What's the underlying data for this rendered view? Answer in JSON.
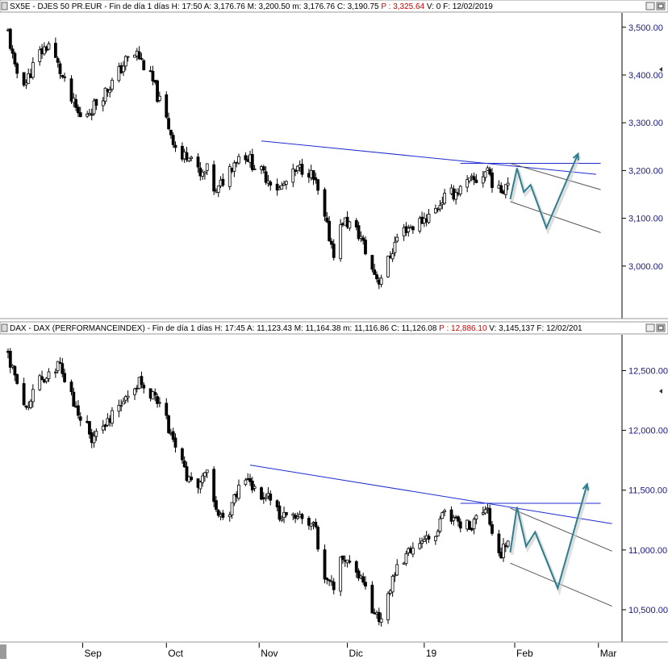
{
  "chart_data": [
    {
      "type": "candlestick",
      "header": {
        "symbol": "SX5E - DJES 50 PR.EUR",
        "period": "Fin de día 1 días",
        "hour_label": "H:",
        "hour": "17:50",
        "open_label": "A:",
        "open": "3,176.76",
        "high_label": "M:",
        "high": "3,200.50",
        "low_label": "m:",
        "low": "3,176.76",
        "close_label": "C:",
        "close": "3,190.75",
        "p_label": "P :",
        "p": "3,325.64",
        "vol_label": "V:",
        "vol": "0",
        "date_label": "F:",
        "date": "12/02/2019"
      },
      "yticks": [
        3000,
        3100,
        3200,
        3300,
        3400,
        3500
      ],
      "ytick_labels": [
        "3,000.00",
        "3,100.00",
        "3,200.00",
        "3,300.00",
        "3,400.00",
        "3,500.00"
      ],
      "ylim": [
        2890,
        3530
      ],
      "close_path": [
        [
          0,
          3490
        ],
        [
          3,
          3410
        ],
        [
          8,
          3385
        ],
        [
          13,
          3440
        ],
        [
          18,
          3465
        ],
        [
          22,
          3420
        ],
        [
          27,
          3355
        ],
        [
          32,
          3310
        ],
        [
          37,
          3330
        ],
        [
          42,
          3360
        ],
        [
          47,
          3390
        ],
        [
          52,
          3430
        ],
        [
          57,
          3445
        ],
        [
          60,
          3420
        ],
        [
          64,
          3385
        ],
        [
          68,
          3330
        ],
        [
          72,
          3280
        ],
        [
          76,
          3220
        ],
        [
          80,
          3240
        ],
        [
          85,
          3185
        ],
        [
          88,
          3200
        ],
        [
          92,
          3150
        ],
        [
          96,
          3190
        ],
        [
          100,
          3220
        ],
        [
          104,
          3240
        ],
        [
          108,
          3215
        ],
        [
          112,
          3195
        ],
        [
          116,
          3180
        ],
        [
          120,
          3160
        ],
        [
          124,
          3180
        ],
        [
          128,
          3200
        ],
        [
          132,
          3210
        ],
        [
          136,
          3170
        ],
        [
          140,
          3095
        ],
        [
          144,
          3030
        ],
        [
          148,
          3095
        ],
        [
          152,
          3085
        ],
        [
          156,
          3060
        ],
        [
          160,
          3000
        ],
        [
          164,
          2970
        ],
        [
          168,
          3010
        ],
        [
          172,
          3060
        ],
        [
          176,
          3080
        ],
        [
          180,
          3085
        ],
        [
          184,
          3100
        ],
        [
          188,
          3110
        ],
        [
          192,
          3140
        ],
        [
          196,
          3150
        ],
        [
          200,
          3160
        ],
        [
          204,
          3175
        ],
        [
          208,
          3180
        ],
        [
          212,
          3205
        ],
        [
          216,
          3150
        ],
        [
          219,
          3165
        ],
        [
          222,
          3190
        ]
      ],
      "projection": [
        [
          222,
          3140
        ],
        [
          225,
          3205
        ],
        [
          228,
          3155
        ],
        [
          231,
          3170
        ],
        [
          238,
          3080
        ],
        [
          252,
          3235
        ]
      ],
      "channel_upper": [
        [
          222,
          3215
        ],
        [
          262,
          3160
        ]
      ],
      "channel_lower": [
        [
          222,
          3135
        ],
        [
          262,
          3070
        ]
      ],
      "resistance_line": [
        [
          112,
          3262
        ],
        [
          260,
          3192
        ]
      ],
      "horizontal_line": [
        [
          200,
          3215
        ],
        [
          262,
          3215
        ]
      ]
    },
    {
      "type": "candlestick",
      "header": {
        "symbol": "DAX - DAX (PERFORMANCEINDEX)",
        "period": "Fin de día 1 días",
        "hour_label": "H:",
        "hour": "17:45",
        "open_label": "A:",
        "open": "11,123.43",
        "high_label": "M:",
        "high": "11,164.38",
        "low_label": "m:",
        "low": "11,116.86",
        "close_label": "C:",
        "close": "11,126.08",
        "p_label": "P :",
        "p": "12,886.10",
        "vol_label": "V:",
        "vol": "3,145,137",
        "date_label": "F:",
        "date": "12/02/201"
      },
      "yticks": [
        10500,
        11000,
        11500,
        12000,
        12500
      ],
      "ytick_labels": [
        "10,500.00",
        "11,000.00",
        "11,500.00",
        "12,000.00",
        "12,500.00"
      ],
      "ylim": [
        10230,
        12800
      ],
      "close_path": [
        [
          0,
          12650
        ],
        [
          3,
          12450
        ],
        [
          8,
          12200
        ],
        [
          13,
          12400
        ],
        [
          18,
          12500
        ],
        [
          22,
          12550
        ],
        [
          27,
          12350
        ],
        [
          32,
          12100
        ],
        [
          37,
          11950
        ],
        [
          42,
          12000
        ],
        [
          47,
          12150
        ],
        [
          52,
          12300
        ],
        [
          57,
          12400
        ],
        [
          60,
          12380
        ],
        [
          64,
          12300
        ],
        [
          68,
          12200
        ],
        [
          72,
          11950
        ],
        [
          76,
          11750
        ],
        [
          80,
          11600
        ],
        [
          85,
          11550
        ],
        [
          88,
          11650
        ],
        [
          92,
          11350
        ],
        [
          96,
          11200
        ],
        [
          100,
          11450
        ],
        [
          104,
          11600
        ],
        [
          108,
          11550
        ],
        [
          112,
          11480
        ],
        [
          116,
          11450
        ],
        [
          120,
          11300
        ],
        [
          124,
          11350
        ],
        [
          128,
          11300
        ],
        [
          132,
          11250
        ],
        [
          136,
          11150
        ],
        [
          140,
          10750
        ],
        [
          144,
          10700
        ],
        [
          148,
          10950
        ],
        [
          152,
          10850
        ],
        [
          156,
          10750
        ],
        [
          160,
          10550
        ],
        [
          164,
          10400
        ],
        [
          168,
          10600
        ],
        [
          172,
          10850
        ],
        [
          176,
          10950
        ],
        [
          180,
          10980
        ],
        [
          184,
          11050
        ],
        [
          188,
          11100
        ],
        [
          192,
          11300
        ],
        [
          196,
          11250
        ],
        [
          200,
          11200
        ],
        [
          204,
          11200
        ],
        [
          208,
          11300
        ],
        [
          212,
          11350
        ],
        [
          216,
          10950
        ],
        [
          219,
          11000
        ],
        [
          222,
          11080
        ]
      ],
      "projection": [
        [
          222,
          10980
        ],
        [
          225,
          11360
        ],
        [
          229,
          11030
        ],
        [
          233,
          11150
        ],
        [
          243,
          10680
        ],
        [
          256,
          11550
        ]
      ],
      "channel_upper": [
        [
          222,
          11350
        ],
        [
          267,
          10990
        ]
      ],
      "channel_lower": [
        [
          222,
          10890
        ],
        [
          267,
          10530
        ]
      ],
      "resistance_line": [
        [
          107,
          11710
        ],
        [
          267,
          11220
        ]
      ],
      "horizontal_line": [
        [
          200,
          11390
        ],
        [
          262,
          11390
        ]
      ]
    }
  ],
  "x_axis": {
    "labels": [
      {
        "text": "Sep",
        "day": 33
      },
      {
        "text": "Oct",
        "day": 70
      },
      {
        "text": "Nov",
        "day": 111
      },
      {
        "text": "Dic",
        "day": 150
      },
      {
        "text": "19",
        "day": 184
      },
      {
        "text": "Feb",
        "day": 224
      },
      {
        "text": "Mar",
        "day": 261
      }
    ],
    "day_range": [
      0,
      270
    ]
  },
  "colors": {
    "candle": "#000000",
    "resistance": "#1f2bd1",
    "channel": "#555555",
    "projection": "#2e7e90",
    "axis_text": "#1a1a7a",
    "header_red": "#cc0000"
  },
  "icons": [
    "pin-icon",
    "maximize-icon",
    "chart-data-icon",
    "axis-arrow-icon"
  ]
}
